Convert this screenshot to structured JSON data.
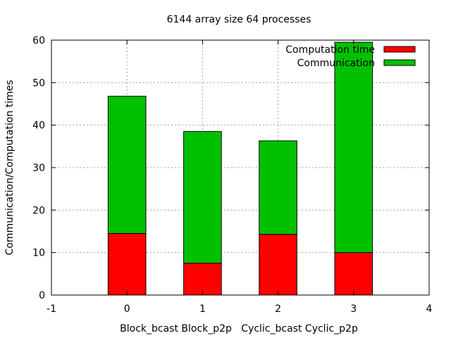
{
  "chart_data": {
    "type": "bar",
    "stacked": true,
    "title": "6144 array size 64 processes",
    "ylabel": "Communication/Computation times",
    "xlabel": "Block_bcast Block_p2p   Cyclic_bcast Cyclic_p2p",
    "xlim": [
      -1,
      4
    ],
    "ylim": [
      0,
      60
    ],
    "x_ticks": [
      -1,
      0,
      1,
      2,
      3,
      4
    ],
    "y_ticks": [
      0,
      10,
      20,
      30,
      40,
      50,
      60
    ],
    "grid": true,
    "legend_position": "top-right",
    "x": [
      0,
      1,
      2,
      3
    ],
    "series": [
      {
        "name": "Computation time",
        "color": "#ff0000",
        "values": [
          14.5,
          7.5,
          14.3,
          10.0
        ]
      },
      {
        "name": "Communication",
        "color": "#00c000",
        "values": [
          32.3,
          31.0,
          22.0,
          49.5
        ]
      }
    ]
  }
}
